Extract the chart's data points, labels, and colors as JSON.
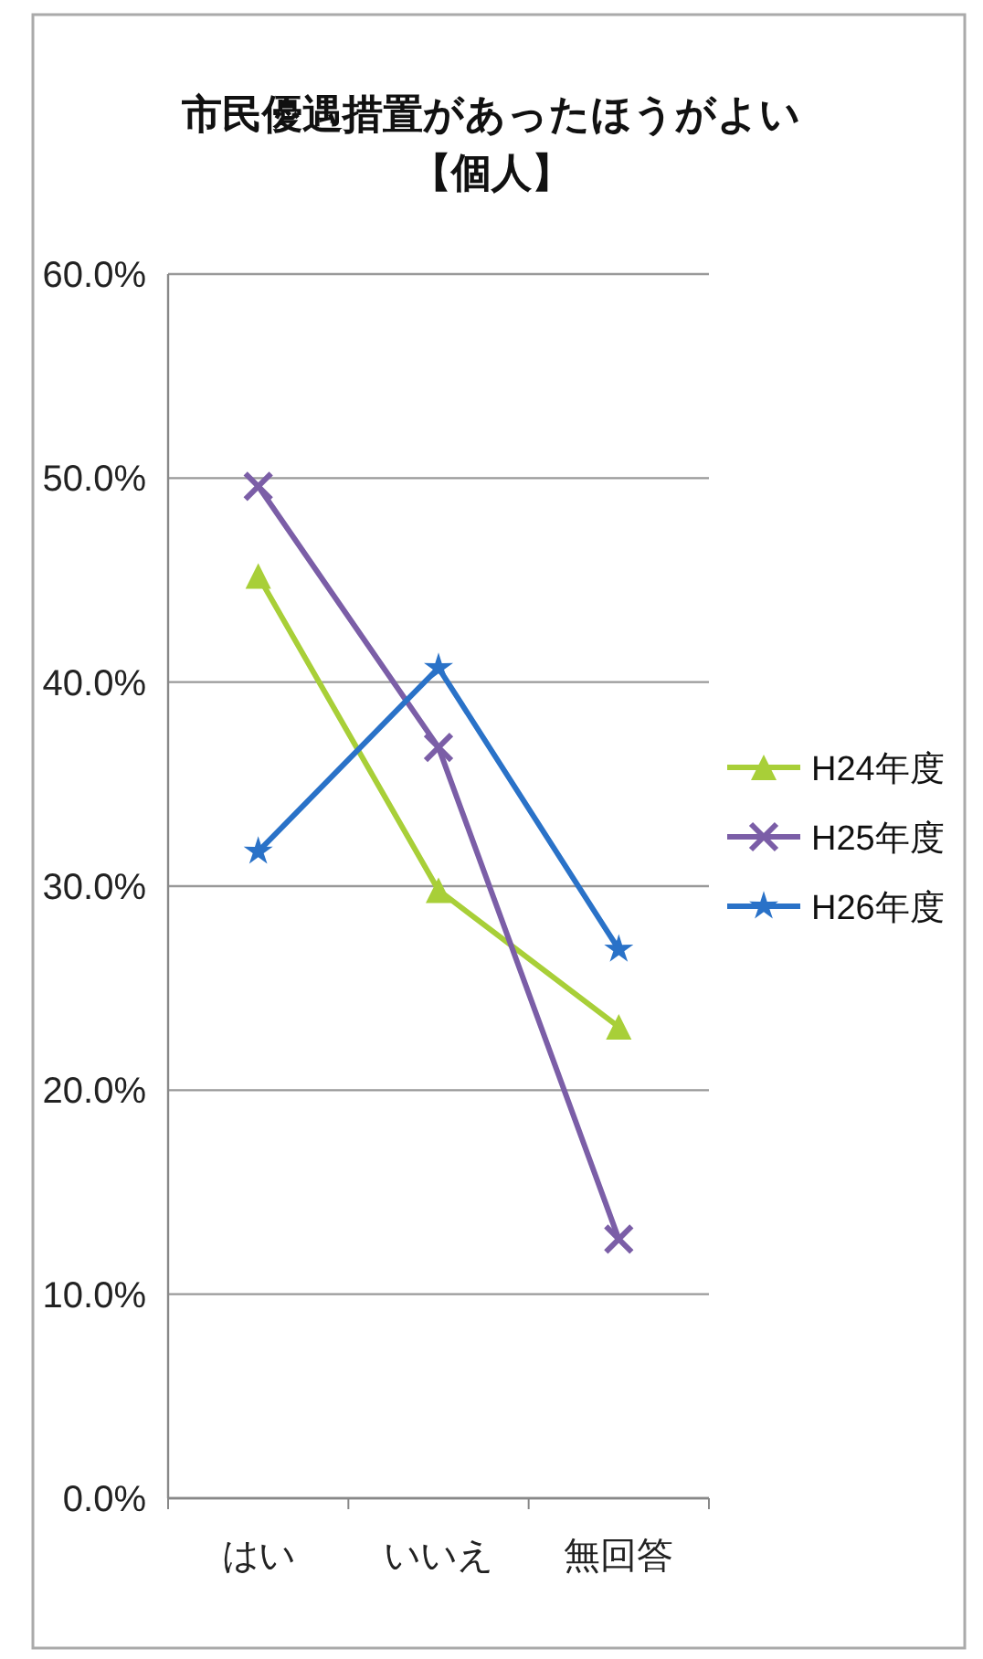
{
  "chart_data": {
    "type": "line",
    "title": "市民優遇措置があったほうがよい",
    "subtitle": "【個人】",
    "categories": [
      "はい",
      "いいえ",
      "無回答"
    ],
    "series": [
      {
        "name": "H24年度",
        "color": "#a8cf38",
        "marker": "triangle",
        "values": [
          45.2,
          29.8,
          23.1
        ]
      },
      {
        "name": "H25年度",
        "color": "#7b5ea7",
        "marker": "cross",
        "values": [
          49.6,
          36.8,
          12.7
        ]
      },
      {
        "name": "H26年度",
        "color": "#2a72c8",
        "marker": "star",
        "values": [
          31.7,
          40.7,
          26.9
        ]
      }
    ],
    "ylim": [
      0,
      60
    ],
    "yticks": [
      {
        "value": 0,
        "label": "0.0%"
      },
      {
        "value": 10,
        "label": "10.0%"
      },
      {
        "value": 20,
        "label": "20.0%"
      },
      {
        "value": 30,
        "label": "30.0%"
      },
      {
        "value": 40,
        "label": "40.0%"
      },
      {
        "value": 50,
        "label": "50.0%"
      },
      {
        "value": 60,
        "label": "60.0%"
      }
    ],
    "grid": "y",
    "legend": "right"
  }
}
